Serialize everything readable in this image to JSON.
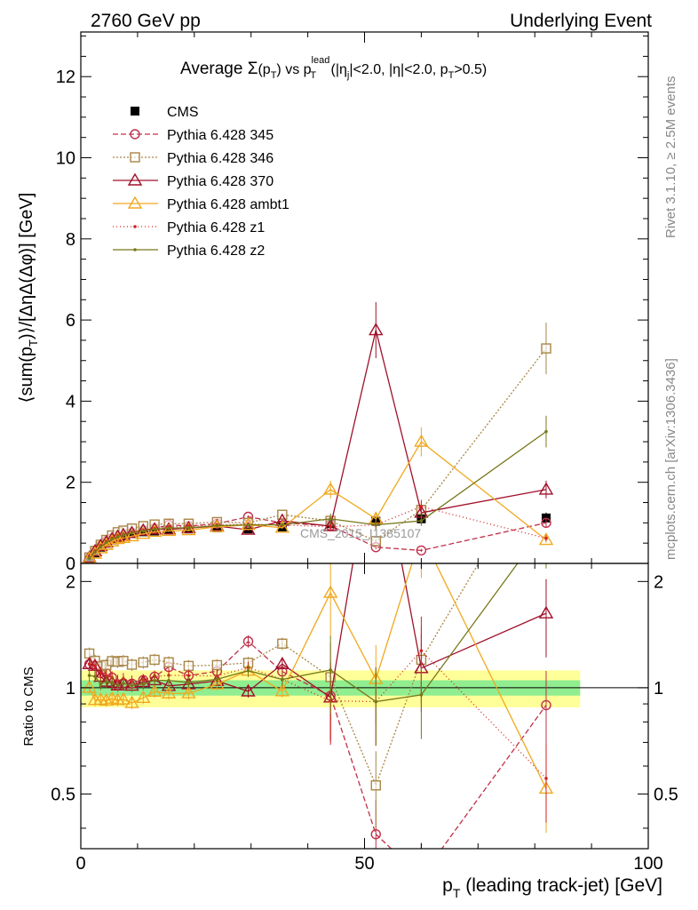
{
  "header": {
    "left": "2760 GeV pp",
    "right": "Underlying Event"
  },
  "side_text": {
    "rivet": "Rivet 3.1.10, ≥ 2.5M events",
    "mcplots": "mcplots.cern.ch [arXiv:1306.3436]"
  },
  "watermark": "CMS_2015_I1385107",
  "chart_data": [
    {
      "type": "line",
      "panel": "main",
      "title_parts": {
        "prefix": "Average ",
        "sigma": "Σ",
        "pt_open": "(p",
        "pt_sub": "T",
        "pt_close": ")",
        "vs": " vs p",
        "lead_sup": "lead",
        "lead_sub": "T",
        "cuts_1": " (|η",
        "cuts_1_sub": "j",
        "cuts_2": "|<2.0, |η|<2.0, p",
        "cuts_2_sub": "T",
        "cuts_3": ">0.5)"
      },
      "ylabel_parts": {
        "a": "⟨sum(p",
        "sub": "T",
        "b": ")⟩/[ΔηΔ(Δφ)] [GeV]"
      },
      "xlim": [
        0,
        100
      ],
      "ylim": [
        0,
        13.1
      ],
      "yticks": [
        0,
        2,
        4,
        6,
        8,
        10,
        12
      ],
      "x": [
        1.5,
        2.5,
        3.5,
        4.5,
        5.5,
        6.5,
        7.5,
        9,
        11,
        13,
        15.5,
        19,
        24,
        29.5,
        35.5,
        44,
        52,
        60,
        82
      ],
      "series": [
        {
          "name": "CMS",
          "color": "#000000",
          "marker": "filled-square",
          "dash": "none",
          "values": [
            0.12,
            0.26,
            0.4,
            0.5,
            0.58,
            0.65,
            0.68,
            0.74,
            0.78,
            0.8,
            0.83,
            0.85,
            0.88,
            0.85,
            0.9,
            0.98,
            1.04,
            1.1,
            1.12
          ]
        },
        {
          "name": "Pythia 6.428 345",
          "color": "#c0304a",
          "marker": "open-circle",
          "dash": "6,3",
          "values": [
            0.14,
            0.3,
            0.44,
            0.55,
            0.62,
            0.66,
            0.7,
            0.76,
            0.82,
            0.86,
            0.95,
            0.92,
            0.98,
            1.15,
            1.0,
            0.93,
            0.4,
            0.32,
            1.0
          ]
        },
        {
          "name": "Pythia 6.428 346",
          "color": "#a88646",
          "marker": "open-square",
          "dash": "2,2",
          "values": [
            0.15,
            0.31,
            0.46,
            0.58,
            0.69,
            0.77,
            0.81,
            0.86,
            0.92,
            0.96,
            0.98,
            0.98,
            1.02,
            1.0,
            1.2,
            1.05,
            0.55,
            1.32,
            5.3
          ]
        },
        {
          "name": "Pythia 6.428 370",
          "color": "#a0102a",
          "marker": "open-triangle",
          "dash": "none",
          "values": [
            0.14,
            0.3,
            0.43,
            0.52,
            0.6,
            0.66,
            0.7,
            0.75,
            0.81,
            0.84,
            0.84,
            0.87,
            0.92,
            0.83,
            1.05,
            0.92,
            5.75,
            1.25,
            1.82
          ]
        },
        {
          "name": "Pythia 6.428 ambt1",
          "color": "#f0a81e",
          "marker": "open-triangle",
          "dash": "none",
          "values": [
            0.12,
            0.24,
            0.37,
            0.46,
            0.54,
            0.6,
            0.63,
            0.67,
            0.73,
            0.78,
            0.8,
            0.82,
            0.9,
            0.95,
            0.88,
            1.82,
            1.1,
            3.0,
            0.58
          ]
        },
        {
          "name": "Pythia 6.428 z1",
          "color": "#d42020",
          "marker": "small-dot",
          "dash": "1,3",
          "values": [
            0.14,
            0.3,
            0.44,
            0.54,
            0.62,
            0.68,
            0.72,
            0.77,
            0.82,
            0.86,
            0.9,
            0.92,
            0.95,
            0.97,
            0.95,
            0.9,
            0.95,
            1.4,
            0.62
          ]
        },
        {
          "name": "Pythia 6.428 z2",
          "color": "#78781a",
          "marker": "small-dot",
          "dash": "none",
          "values": [
            0.13,
            0.28,
            0.41,
            0.52,
            0.6,
            0.66,
            0.7,
            0.75,
            0.8,
            0.84,
            0.87,
            0.88,
            0.93,
            0.95,
            0.95,
            1.1,
            0.95,
            1.05,
            3.25
          ]
        }
      ],
      "legend": "top-left",
      "grid": false
    },
    {
      "type": "line",
      "panel": "ratio",
      "ylabel": "Ratio to CMS",
      "xlabel_parts": {
        "p": "p",
        "sub": "T",
        "rest": " (leading track-jet) [GeV]"
      },
      "xlim": [
        0,
        100
      ],
      "ylim": [
        0.35,
        2.25
      ],
      "xticks": [
        0,
        50,
        100
      ],
      "yticks": [
        0.5,
        1,
        2
      ],
      "ytick_labels": [
        "0.5",
        "1",
        "2"
      ],
      "band_inner": 0.05,
      "band_outer": 0.12,
      "band_inner_color": "#90ee90",
      "band_outer_color": "#ffff99"
    }
  ]
}
